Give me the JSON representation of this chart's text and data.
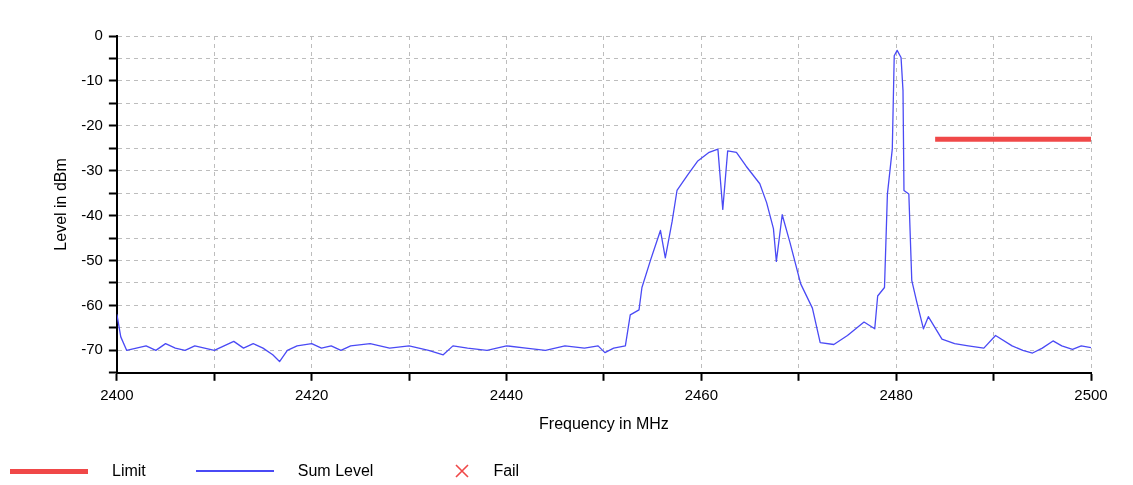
{
  "chart_data": {
    "type": "line",
    "xlabel": "Frequency in MHz",
    "ylabel": "Level in dBm",
    "xlim": [
      2400,
      2500
    ],
    "ylim": [
      -75,
      0
    ],
    "xticks": [
      2400,
      {
        "value": 2410,
        "label": null
      },
      2420,
      {
        "value": 2430,
        "label": null
      },
      2440,
      {
        "value": 2450,
        "label": null
      },
      2460,
      {
        "value": 2470,
        "label": null
      },
      2480,
      {
        "value": 2490,
        "label": null
      },
      2500
    ],
    "yticks": [
      {
        "value": -75,
        "label": null
      },
      -70,
      {
        "value": -65,
        "label": null
      },
      -60,
      {
        "value": -55,
        "label": null
      },
      -50,
      {
        "value": -45,
        "label": null
      },
      -40,
      {
        "value": -35,
        "label": null
      },
      -30,
      {
        "value": -25,
        "label": null
      },
      -20,
      {
        "value": -15,
        "label": null
      },
      -10,
      {
        "value": -5,
        "label": null
      },
      0
    ],
    "grid": true,
    "legend": "bottom left",
    "marker": "none",
    "line_style": "solid",
    "series": [
      {
        "name": "Limit",
        "type": "line",
        "color": "#f04848",
        "x": [
          2484,
          2500
        ],
        "values": [
          -23,
          -23
        ]
      },
      {
        "name": "Sum Level",
        "type": "line",
        "color": "#4a4af5",
        "x": [
          2400,
          2400.4,
          2401,
          2402,
          2403,
          2404,
          2405,
          2406,
          2407,
          2408,
          2409,
          2410,
          2411,
          2412,
          2413,
          2414,
          2415,
          2416,
          2416.7,
          2417.5,
          2418.5,
          2420,
          2421,
          2422,
          2423,
          2424,
          2426,
          2428,
          2430,
          2432,
          2433.5,
          2434.5,
          2436,
          2438,
          2440,
          2442,
          2444,
          2446,
          2448,
          2449.4,
          2450.1,
          2451,
          2452.2,
          2452.7,
          2453.6,
          2453.9,
          2454.8,
          2455.8,
          2456.3,
          2457,
          2457.5,
          2458.6,
          2459.6,
          2460.8,
          2461.7,
          2462.2,
          2462.7,
          2463.6,
          2464.6,
          2466,
          2466.7,
          2467.4,
          2467.7,
          2468.3,
          2469.1,
          2470.2,
          2471.4,
          2472.2,
          2473.6,
          2475,
          2476.7,
          2477.8,
          2478.1,
          2478.8,
          2479.1,
          2479.6,
          2479.8,
          2480.1,
          2480.5,
          2480.7,
          2480.8,
          2481.3,
          2481.6,
          2482.1,
          2482.8,
          2483.3,
          2484.7,
          2486,
          2487.4,
          2489,
          2490.2,
          2491.9,
          2493,
          2494,
          2495,
          2496.1,
          2497,
          2498.1,
          2499,
          2500
        ],
        "values": [
          -62,
          -67,
          -70,
          -69.5,
          -69,
          -70,
          -68.5,
          -69.5,
          -70,
          -69,
          -69.5,
          -70,
          -69,
          -68,
          -69.5,
          -68.5,
          -69.5,
          -71,
          -72.5,
          -70,
          -69,
          -68.5,
          -69.5,
          -69,
          -70,
          -69,
          -68.5,
          -69.5,
          -69,
          -70,
          -71,
          -69,
          -69.5,
          -70,
          -69,
          -69.5,
          -70,
          -69,
          -69.5,
          -69,
          -70.5,
          -69.5,
          -69,
          -62.1,
          -61,
          -56,
          -49.8,
          -43.3,
          -49.4,
          -41.3,
          -34.4,
          -30.9,
          -27.9,
          -25.9,
          -25.2,
          -38.6,
          -25.6,
          -25.9,
          -29,
          -32.9,
          -37.1,
          -42.9,
          -50.2,
          -39.8,
          -46,
          -55.2,
          -60.6,
          -68.3,
          -68.7,
          -66.7,
          -63.7,
          -65.2,
          -57.9,
          -56,
          -35.2,
          -25.2,
          -4.4,
          -3.2,
          -4.8,
          -12.1,
          -34.4,
          -35.2,
          -54.4,
          -59.1,
          -65.2,
          -62.5,
          -67.5,
          -68.5,
          -69,
          -69.5,
          -66.7,
          -69,
          -70,
          -70.6,
          -69.5,
          -67.9,
          -69,
          -69.8,
          -69,
          -69.4
        ]
      },
      {
        "name": "Fail",
        "type": "scatter",
        "color": "#f04848",
        "marker": "cross"
      }
    ]
  }
}
